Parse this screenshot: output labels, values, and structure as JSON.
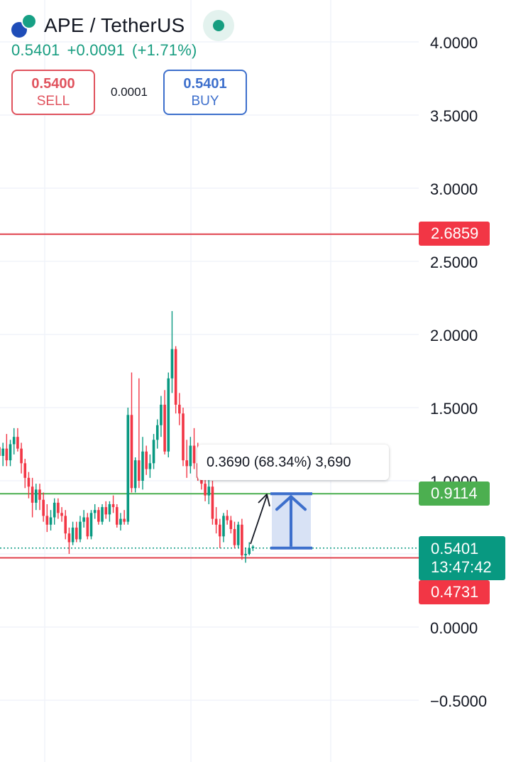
{
  "header": {
    "title": "APE / TetherUS",
    "price": "0.5401",
    "change": "+0.0091",
    "change_pct": "(+1.71%)",
    "sell_price": "0.5400",
    "sell_label": "SELL",
    "spread": "0.0001",
    "buy_price": "0.5401",
    "buy_label": "BUY"
  },
  "price_tags": {
    "upper_line": "2.6859",
    "target_line": "0.9114",
    "current_price": "0.5401",
    "countdown": "13:47:42",
    "lower_line": "0.4731"
  },
  "measure": {
    "text": "0.3690 (68.34%) 3,690"
  },
  "colors": {
    "up": "#089981",
    "down": "#f23645",
    "red_line": "#e0404c",
    "green_line": "#4caf50",
    "measure": "#3d6fcc",
    "grid": "#f0f3fa"
  },
  "chart_data": {
    "type": "candlestick",
    "symbol": "APE / TetherUS",
    "y_axis_ticks": [
      "4.0000",
      "3.5000",
      "3.0000",
      "2.5000",
      "2.0000",
      "1.5000",
      "1.0000",
      "0.0000",
      "−0.5000"
    ],
    "ylim": [
      -0.9,
      4.35
    ],
    "horizontal_lines": [
      {
        "value": 2.6859,
        "color": "red"
      },
      {
        "value": 0.9114,
        "color": "green"
      },
      {
        "value": 0.4731,
        "color": "red"
      }
    ],
    "current_price": 0.5401,
    "measurement": {
      "from": 0.5401,
      "to": 0.9114,
      "change": 0.369,
      "change_pct": 68.34
    },
    "candles": [
      [
        1.23,
        1.28,
        1.12,
        1.17
      ],
      [
        1.17,
        1.26,
        1.1,
        1.22
      ],
      [
        1.22,
        1.32,
        1.1,
        1.14
      ],
      [
        1.14,
        1.28,
        1.1,
        1.25
      ],
      [
        1.25,
        1.36,
        1.18,
        1.3
      ],
      [
        1.3,
        1.36,
        1.2,
        1.22
      ],
      [
        1.22,
        1.26,
        1.05,
        1.12
      ],
      [
        1.12,
        1.15,
        0.95,
        1.02
      ],
      [
        1.02,
        1.06,
        0.88,
        0.96
      ],
      [
        0.96,
        1.02,
        0.75,
        0.85
      ],
      [
        0.85,
        0.98,
        0.8,
        0.94
      ],
      [
        0.94,
        0.98,
        0.8,
        0.87
      ],
      [
        0.87,
        0.92,
        0.72,
        0.76
      ],
      [
        0.76,
        0.84,
        0.65,
        0.7
      ],
      [
        0.7,
        0.8,
        0.66,
        0.75
      ],
      [
        0.75,
        0.88,
        0.7,
        0.85
      ],
      [
        0.85,
        0.88,
        0.74,
        0.78
      ],
      [
        0.78,
        0.82,
        0.72,
        0.76
      ],
      [
        0.76,
        0.8,
        0.6,
        0.64
      ],
      [
        0.64,
        0.68,
        0.5,
        0.58
      ],
      [
        0.58,
        0.72,
        0.56,
        0.68
      ],
      [
        0.68,
        0.72,
        0.58,
        0.6
      ],
      [
        0.6,
        0.76,
        0.58,
        0.72
      ],
      [
        0.72,
        0.8,
        0.68,
        0.75
      ],
      [
        0.75,
        0.78,
        0.6,
        0.62
      ],
      [
        0.62,
        0.8,
        0.6,
        0.78
      ],
      [
        0.78,
        0.84,
        0.74,
        0.8
      ],
      [
        0.8,
        0.82,
        0.7,
        0.72
      ],
      [
        0.72,
        0.84,
        0.7,
        0.82
      ],
      [
        0.82,
        0.86,
        0.74,
        0.77
      ],
      [
        0.77,
        0.86,
        0.72,
        0.84
      ],
      [
        0.84,
        0.9,
        0.78,
        0.82
      ],
      [
        0.82,
        0.84,
        0.68,
        0.7
      ],
      [
        0.7,
        0.78,
        0.66,
        0.74
      ],
      [
        0.74,
        0.8,
        0.7,
        0.72
      ],
      [
        0.72,
        1.5,
        0.7,
        1.45
      ],
      [
        1.45,
        1.74,
        0.92,
        0.95
      ],
      [
        0.95,
        1.16,
        0.92,
        1.14
      ],
      [
        1.14,
        1.7,
        0.95,
        1.0
      ],
      [
        1.0,
        1.3,
        0.94,
        1.2
      ],
      [
        1.2,
        1.24,
        1.04,
        1.08
      ],
      [
        1.08,
        1.18,
        1.02,
        1.12
      ],
      [
        1.12,
        1.32,
        1.08,
        1.28
      ],
      [
        1.28,
        1.42,
        1.22,
        1.38
      ],
      [
        1.38,
        1.58,
        1.3,
        1.52
      ],
      [
        1.52,
        1.62,
        1.18,
        1.2
      ],
      [
        1.2,
        1.74,
        1.16,
        1.7
      ],
      [
        1.7,
        2.16,
        1.6,
        1.9
      ],
      [
        1.9,
        1.92,
        1.46,
        1.52
      ],
      [
        1.52,
        1.6,
        1.38,
        1.46
      ],
      [
        1.46,
        1.5,
        1.1,
        1.14
      ],
      [
        1.14,
        1.28,
        1.02,
        1.1
      ],
      [
        1.1,
        1.3,
        1.05,
        1.24
      ],
      [
        1.24,
        1.36,
        1.08,
        1.12
      ],
      [
        1.12,
        1.26,
        1.0,
        1.02
      ],
      [
        1.02,
        1.1,
        0.94,
        0.98
      ],
      [
        0.98,
        1.04,
        0.86,
        0.9
      ],
      [
        0.9,
        1.02,
        0.84,
        0.96
      ],
      [
        0.96,
        1.0,
        0.7,
        0.74
      ],
      [
        0.74,
        0.82,
        0.64,
        0.7
      ],
      [
        0.7,
        0.74,
        0.54,
        0.62
      ],
      [
        0.62,
        0.78,
        0.58,
        0.76
      ],
      [
        0.76,
        0.8,
        0.7,
        0.73
      ],
      [
        0.73,
        0.76,
        0.64,
        0.67
      ],
      [
        0.67,
        0.72,
        0.54,
        0.56
      ],
      [
        0.56,
        0.72,
        0.54,
        0.7
      ],
      [
        0.7,
        0.74,
        0.46,
        0.49
      ],
      [
        0.49,
        0.54,
        0.44,
        0.5
      ],
      [
        0.5,
        0.58,
        0.49,
        0.54
      ],
      [
        0.54,
        0.56,
        0.52,
        0.55
      ]
    ]
  }
}
